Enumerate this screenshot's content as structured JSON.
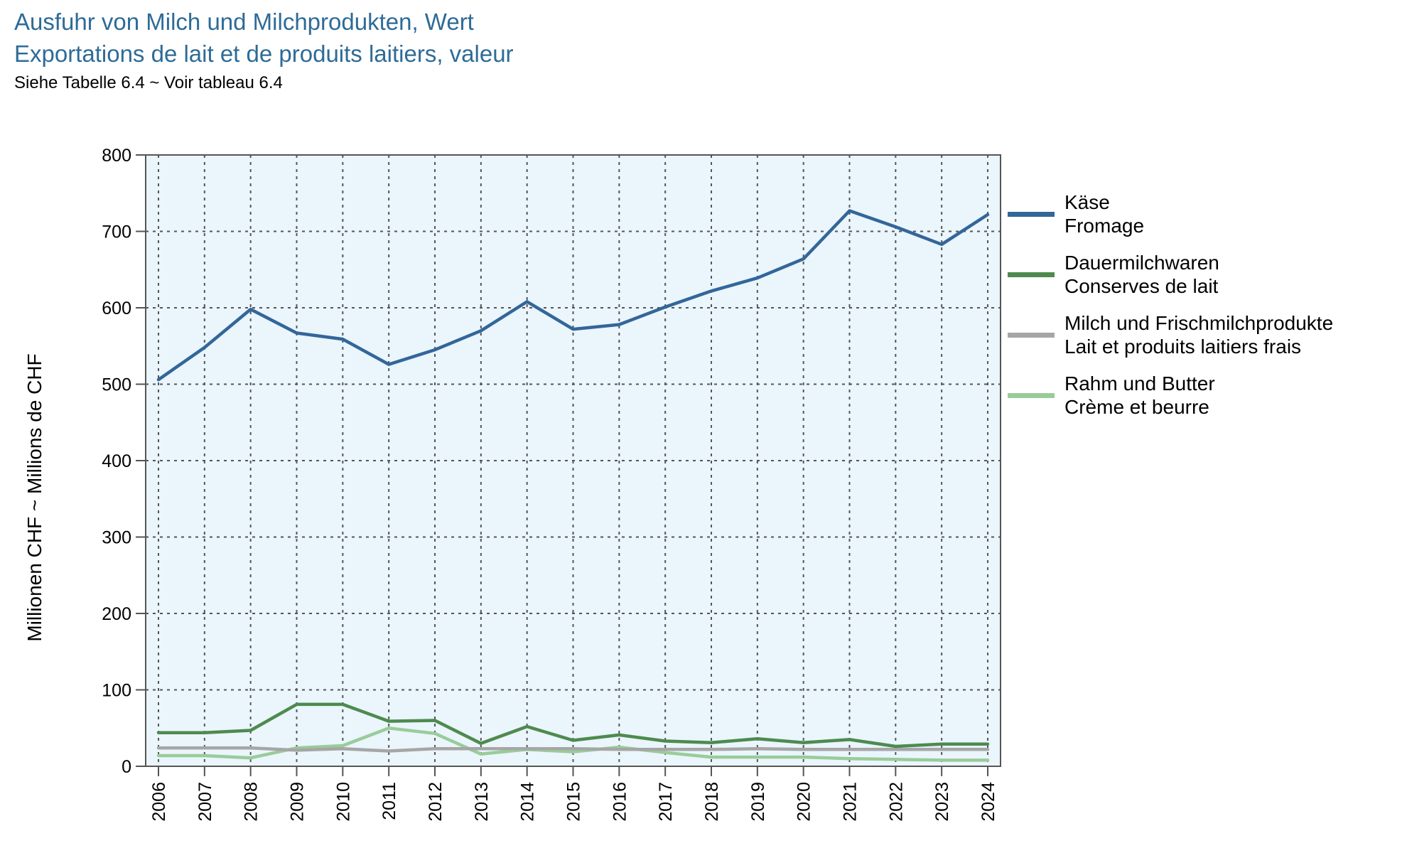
{
  "title_de": "Ausfuhr von Milch und Milchprodukten, Wert",
  "title_fr": "Exportations de lait et de produits laitiers, valeur",
  "subtitle": "Siehe Tabelle 6.4   ~   Voir tableau 6.4",
  "colors": {
    "title": "#2e6b97",
    "plot_background": "#eaf5fc",
    "grid": "#555555"
  },
  "chart_data": {
    "type": "line",
    "ylabel": "Millionen CHF   ~   Millions de CHF",
    "ylim": [
      0,
      800
    ],
    "yticks": [
      0,
      100,
      200,
      300,
      400,
      500,
      600,
      700,
      800
    ],
    "grid": true,
    "legend_position": "right",
    "x": [
      "2006",
      "2007",
      "2008",
      "2009",
      "2010",
      "2011",
      "2012",
      "2013",
      "2014",
      "2015",
      "2016",
      "2017",
      "2018",
      "2019",
      "2020",
      "2021",
      "2022",
      "2023",
      "2024"
    ],
    "series": [
      {
        "name_de": "Käse",
        "name_fr": "Fromage",
        "color": "#336699",
        "values": [
          506,
          548,
          598,
          567,
          559,
          526,
          545,
          570,
          608,
          572,
          578,
          601,
          622,
          639,
          664,
          727,
          706,
          683,
          722
        ]
      },
      {
        "name_de": "Dauermilchwaren",
        "name_fr": "Conserves de lait",
        "color": "#4e8a4e",
        "values": [
          44,
          44,
          47,
          81,
          81,
          59,
          60,
          30,
          52,
          34,
          41,
          33,
          31,
          36,
          31,
          35,
          26,
          29,
          29
        ]
      },
      {
        "name_de": "Milch und Frischmilchprodukte",
        "name_fr": "Lait et produits laitiers frais",
        "color": "#a6a6a6",
        "values": [
          24,
          24,
          24,
          21,
          23,
          20,
          23,
          23,
          23,
          23,
          22,
          22,
          22,
          23,
          22,
          22,
          22,
          22,
          22
        ]
      },
      {
        "name_de": "Rahm und Butter",
        "name_fr": "Crème et beurre",
        "color": "#99cc99",
        "values": [
          14,
          14,
          11,
          24,
          27,
          50,
          43,
          16,
          22,
          19,
          25,
          18,
          12,
          12,
          12,
          10,
          9,
          8,
          8
        ]
      }
    ]
  }
}
